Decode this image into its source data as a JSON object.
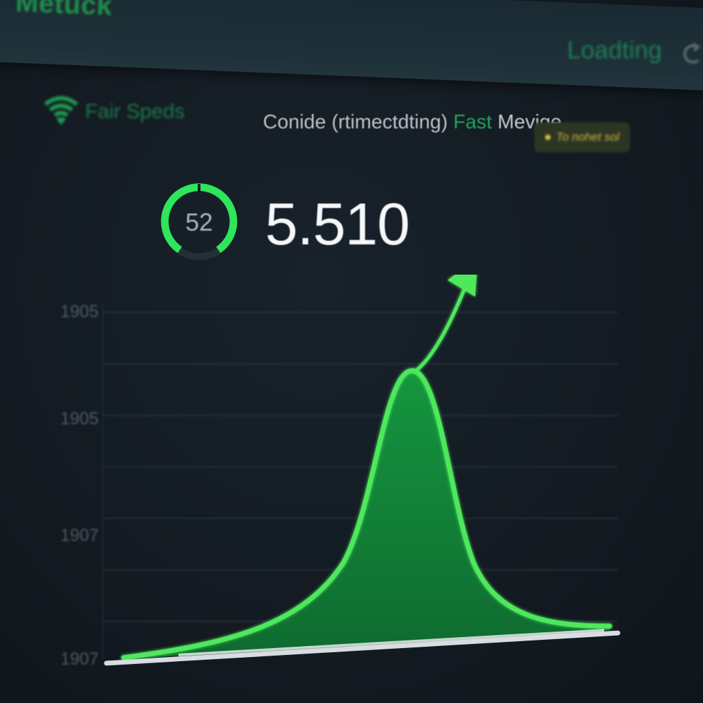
{
  "app": {
    "title": "Metuck",
    "status": "Loadting"
  },
  "connection": {
    "quality_label": "Fair Speds",
    "description": "Conide (rtimectdting)",
    "fast_label": "Fast",
    "merge_label": "Mevige",
    "notice": "To nohet sol"
  },
  "metrics": {
    "gauge_value": "52",
    "big_number": "5.510"
  },
  "colors": {
    "accent": "#4de85c",
    "fill": "#148a3a",
    "background": "#141b22"
  },
  "icons": {
    "wifi": "wifi-icon",
    "refresh": "refresh-icon",
    "trend": "trend-arrow-icon"
  },
  "chart_data": {
    "type": "area",
    "y_tick_labels": [
      "1905",
      "1905",
      "1907",
      "1907"
    ],
    "xlabel": "",
    "ylabel": "",
    "grid": true,
    "annotation": "upward trend arrow"
  }
}
